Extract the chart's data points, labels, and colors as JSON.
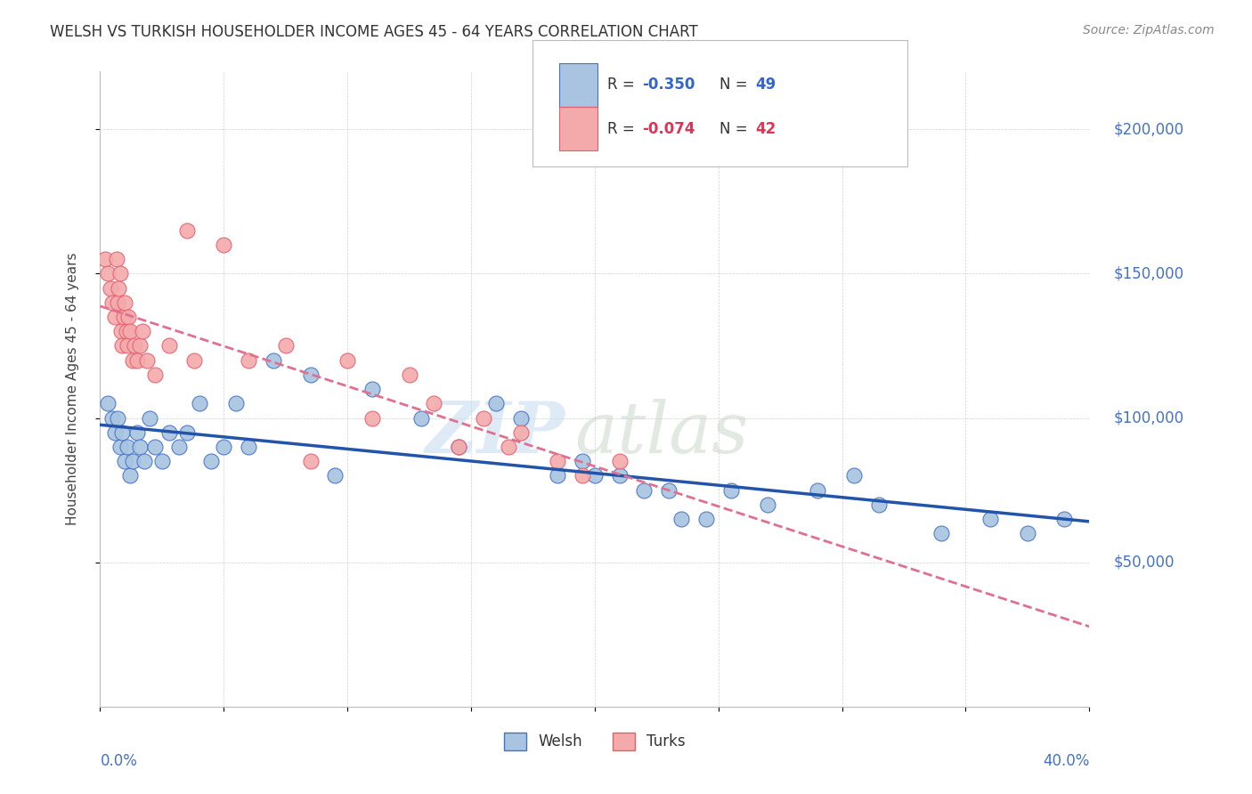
{
  "title": "WELSH VS TURKISH HOUSEHOLDER INCOME AGES 45 - 64 YEARS CORRELATION CHART",
  "source": "Source: ZipAtlas.com",
  "ylabel": "Householder Income Ages 45 - 64 years",
  "xlim": [
    0.0,
    40.0
  ],
  "ylim": [
    0,
    220000
  ],
  "watermark_upper": "ZIP",
  "watermark_lower": "atlas",
  "welsh_R": "-0.350",
  "welsh_N": "49",
  "turks_R": "-0.074",
  "turks_N": "42",
  "welsh_color": "#A8C4E0",
  "welsh_edge_color": "#4472C4",
  "turks_color": "#F4AAAA",
  "turks_edge_color": "#E06070",
  "welsh_line_color": "#2255AA",
  "turks_line_color": "#E07090",
  "welsh_x": [
    0.3,
    0.5,
    0.6,
    0.7,
    0.8,
    0.9,
    1.0,
    1.1,
    1.2,
    1.3,
    1.5,
    1.6,
    1.8,
    2.0,
    2.2,
    2.5,
    2.8,
    3.2,
    3.5,
    4.0,
    4.5,
    5.0,
    5.5,
    6.0,
    7.0,
    8.5,
    9.5,
    11.0,
    13.0,
    14.5,
    16.0,
    17.0,
    18.5,
    19.5,
    20.0,
    21.0,
    22.0,
    23.0,
    23.5,
    24.5,
    25.5,
    27.0,
    29.0,
    30.5,
    31.5,
    34.0,
    36.0,
    37.5,
    39.0
  ],
  "welsh_y": [
    105000,
    100000,
    95000,
    100000,
    90000,
    95000,
    85000,
    90000,
    80000,
    85000,
    95000,
    90000,
    85000,
    100000,
    90000,
    85000,
    95000,
    90000,
    95000,
    105000,
    85000,
    90000,
    105000,
    90000,
    120000,
    115000,
    80000,
    110000,
    100000,
    90000,
    105000,
    100000,
    80000,
    85000,
    80000,
    80000,
    75000,
    75000,
    65000,
    65000,
    75000,
    70000,
    75000,
    80000,
    70000,
    60000,
    65000,
    60000,
    65000
  ],
  "turks_x": [
    0.2,
    0.3,
    0.4,
    0.5,
    0.6,
    0.65,
    0.7,
    0.75,
    0.8,
    0.85,
    0.9,
    0.95,
    1.0,
    1.05,
    1.1,
    1.15,
    1.2,
    1.3,
    1.4,
    1.5,
    1.6,
    1.7,
    1.9,
    2.2,
    2.8,
    3.5,
    3.8,
    5.0,
    6.0,
    7.5,
    8.5,
    10.0,
    11.0,
    12.5,
    13.5,
    14.5,
    15.5,
    16.5,
    17.0,
    18.5,
    19.5,
    21.0
  ],
  "turks_y": [
    155000,
    150000,
    145000,
    140000,
    135000,
    155000,
    140000,
    145000,
    150000,
    130000,
    125000,
    135000,
    140000,
    130000,
    125000,
    135000,
    130000,
    120000,
    125000,
    120000,
    125000,
    130000,
    120000,
    115000,
    125000,
    165000,
    120000,
    160000,
    120000,
    125000,
    85000,
    120000,
    100000,
    115000,
    105000,
    90000,
    100000,
    90000,
    95000,
    85000,
    80000,
    85000
  ],
  "legend_welsh_label": "Welsh",
  "legend_turks_label": "Turks"
}
